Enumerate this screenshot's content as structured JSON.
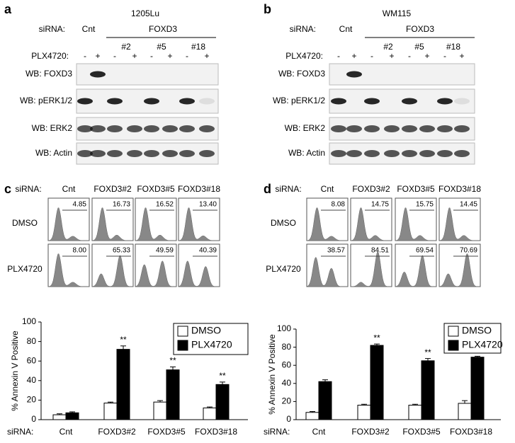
{
  "blots": [
    {
      "letter": "a",
      "title": "1205Lu",
      "sirna_label": "siRNA:",
      "control": "Cnt",
      "group": "FOXD3",
      "clones": [
        "#2",
        "#5",
        "#18"
      ],
      "drug_label": "PLX4720:",
      "treatment": [
        "-",
        "+",
        "-",
        "+",
        "-",
        "+",
        "-",
        "+"
      ],
      "rows": [
        "WB: FOXD3",
        "WB: pERK1/2",
        "WB: ERK2",
        "WB: Actin"
      ]
    },
    {
      "letter": "b",
      "title": "WM115",
      "sirna_label": "siRNA:",
      "control": "Cnt",
      "group": "FOXD3",
      "clones": [
        "#2",
        "#5",
        "#18"
      ],
      "drug_label": "PLX4720:",
      "treatment": [
        "-",
        "+",
        "-",
        "+",
        "-",
        "+",
        "-",
        "+"
      ],
      "rows": [
        "WB: FOXD3",
        "WB: pERK1/2",
        "WB: ERK2",
        "WB: Actin"
      ]
    }
  ],
  "flow": [
    {
      "letter": "c",
      "sirna_label": "siRNA:",
      "columns": [
        "Cnt",
        "FOXD3#2",
        "FOXD3#5",
        "FOXD3#18"
      ],
      "rows": [
        {
          "label": "DMSO",
          "values": [
            "4.85",
            "16.73",
            "16.52",
            "13.40"
          ]
        },
        {
          "label": "PLX4720",
          "values": [
            "8.00",
            "65.33",
            "49.59",
            "40.39"
          ]
        }
      ]
    },
    {
      "letter": "d",
      "sirna_label": "siRNA:",
      "columns": [
        "Cnt",
        "FOXD3#2",
        "FOXD3#5",
        "FOXD3#18"
      ],
      "rows": [
        {
          "label": "DMSO",
          "values": [
            "8.08",
            "14.75",
            "15.75",
            "14.45"
          ]
        },
        {
          "label": "PLX4720",
          "values": [
            "38.57",
            "84.51",
            "69.54",
            "70.69"
          ]
        }
      ]
    }
  ],
  "chart_data": [
    {
      "type": "bar",
      "ylabel": "% Annexin V Positive",
      "xlabel": "siRNA:",
      "categories": [
        "Cnt",
        "FOXD3#2",
        "FOXD3#5",
        "FOXD3#18"
      ],
      "series": [
        {
          "name": "DMSO",
          "color": "#ffffff",
          "values": [
            5,
            17,
            18,
            12
          ],
          "errors": [
            1,
            1,
            1.5,
            1
          ]
        },
        {
          "name": "PLX4720",
          "color": "#000000",
          "values": [
            7,
            72,
            51,
            36
          ],
          "errors": [
            1,
            3.5,
            3,
            2.5
          ],
          "annotations": [
            null,
            "**",
            "**",
            "**"
          ]
        }
      ],
      "ylim": [
        0,
        100
      ],
      "yticks": [
        0,
        20,
        40,
        60,
        80,
        100
      ],
      "legend": "upper right"
    },
    {
      "type": "bar",
      "ylabel": "% Annexin V Positive",
      "xlabel": "siRNA:",
      "categories": [
        "Cnt",
        "FOXD3#2",
        "FOXD3#5",
        "FOXD3#18"
      ],
      "series": [
        {
          "name": "DMSO",
          "color": "#ffffff",
          "values": [
            8,
            16,
            16,
            18
          ],
          "errors": [
            1,
            1,
            1,
            3
          ]
        },
        {
          "name": "PLX4720",
          "color": "#000000",
          "values": [
            42,
            82,
            65,
            69
          ],
          "errors": [
            2,
            1.5,
            2.5,
            1
          ],
          "annotations": [
            null,
            "**",
            "**",
            "**"
          ]
        }
      ],
      "ylim": [
        0,
        100
      ],
      "yticks": [
        0,
        20,
        40,
        60,
        80,
        100
      ],
      "legend": "upper right"
    }
  ]
}
